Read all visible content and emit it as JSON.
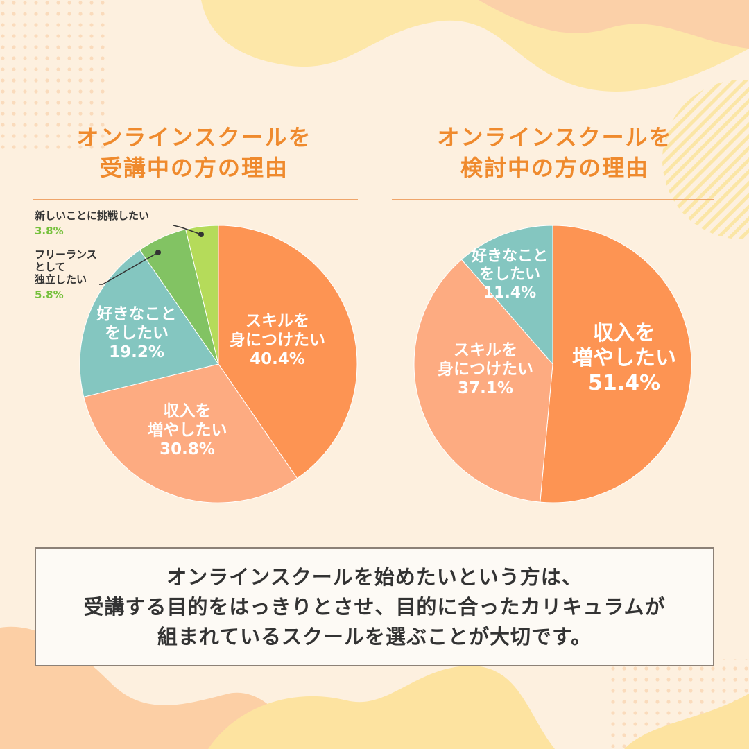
{
  "colors": {
    "background": "#fdf0df",
    "title": "#ef8a2d",
    "slice_orange": "#fd9453",
    "slice_salmon": "#fdab81",
    "slice_teal": "#84c6c0",
    "slice_green": "#82c363",
    "slice_lightgreen": "#b5db5a",
    "callout_value": "#75c03b",
    "summary_text": "#333333"
  },
  "chart_data": [
    {
      "type": "pie",
      "title_lines": [
        "オンラインスクールを",
        "受講中の方の理由"
      ],
      "start_angle_deg": 0,
      "direction": "clockwise",
      "slices": [
        {
          "label_lines": [
            "スキルを",
            "身につけたい"
          ],
          "value": 40.4,
          "value_text": "40.4%",
          "color": "#fd9453",
          "label_placement": "inside"
        },
        {
          "label_lines": [
            "収入を",
            "増やしたい"
          ],
          "value": 30.8,
          "value_text": "30.8%",
          "color": "#fdab81",
          "label_placement": "inside"
        },
        {
          "label_lines": [
            "好きなこと",
            "をしたい"
          ],
          "value": 19.2,
          "value_text": "19.2%",
          "color": "#84c6c0",
          "label_placement": "inside"
        },
        {
          "label_lines": [
            "フリーランス",
            "として",
            "独立したい"
          ],
          "value": 5.8,
          "value_text": "5.8%",
          "color": "#82c363",
          "label_placement": "callout"
        },
        {
          "label_lines": [
            "新しいことに挑戦したい"
          ],
          "value": 3.8,
          "value_text": "3.8%",
          "color": "#b5db5a",
          "label_placement": "callout"
        }
      ]
    },
    {
      "type": "pie",
      "title_lines": [
        "オンラインスクールを",
        "検討中の方の理由"
      ],
      "start_angle_deg": 0,
      "direction": "clockwise",
      "slices": [
        {
          "label_lines": [
            "収入を",
            "増やしたい"
          ],
          "value": 51.4,
          "value_text": "51.4%",
          "color": "#fd9453",
          "label_placement": "inside"
        },
        {
          "label_lines": [
            "スキルを",
            "身につけたい"
          ],
          "value": 37.1,
          "value_text": "37.1%",
          "color": "#fdab81",
          "label_placement": "inside"
        },
        {
          "label_lines": [
            "好きなこと",
            "をしたい"
          ],
          "value": 11.4,
          "value_text": "11.4%",
          "color": "#84c6c0",
          "label_placement": "inside"
        }
      ]
    }
  ],
  "summary": {
    "lines": [
      "オンラインスクールを始めたいという方は、",
      "受講する目的をはっきりとさせ、目的に合ったカリキュラムが",
      "組まれているスクールを選ぶことが大切です。"
    ]
  }
}
